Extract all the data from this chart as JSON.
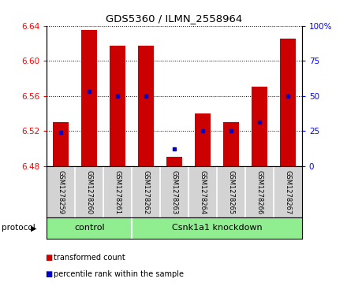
{
  "title": "GDS5360 / ILMN_2558964",
  "samples": [
    "GSM1278259",
    "GSM1278260",
    "GSM1278261",
    "GSM1278262",
    "GSM1278263",
    "GSM1278264",
    "GSM1278265",
    "GSM1278266",
    "GSM1278267"
  ],
  "bar_tops": [
    6.53,
    6.635,
    6.617,
    6.617,
    6.49,
    6.54,
    6.53,
    6.57,
    6.625
  ],
  "bar_bottom": 6.48,
  "percentile_values": [
    6.518,
    6.565,
    6.56,
    6.56,
    6.499,
    6.52,
    6.52,
    6.53,
    6.56
  ],
  "ylim_left": [
    6.48,
    6.64
  ],
  "ylim_right": [
    0,
    100
  ],
  "yticks_left": [
    6.48,
    6.52,
    6.56,
    6.6,
    6.64
  ],
  "yticks_right": [
    0,
    25,
    50,
    75,
    100
  ],
  "ytick_labels_right": [
    "0",
    "25",
    "50",
    "75",
    "100%"
  ],
  "bar_color": "#cc0000",
  "dot_color": "#0000cc",
  "control_label": "control",
  "treatment_label": "Csnk1a1 knockdown",
  "protocol_label": "protocol",
  "legend_red": "transformed count",
  "legend_blue": "percentile rank within the sample",
  "group_green": "#90ee90",
  "tick_area_bg": "#d3d3d3",
  "plot_bg": "#ffffff"
}
